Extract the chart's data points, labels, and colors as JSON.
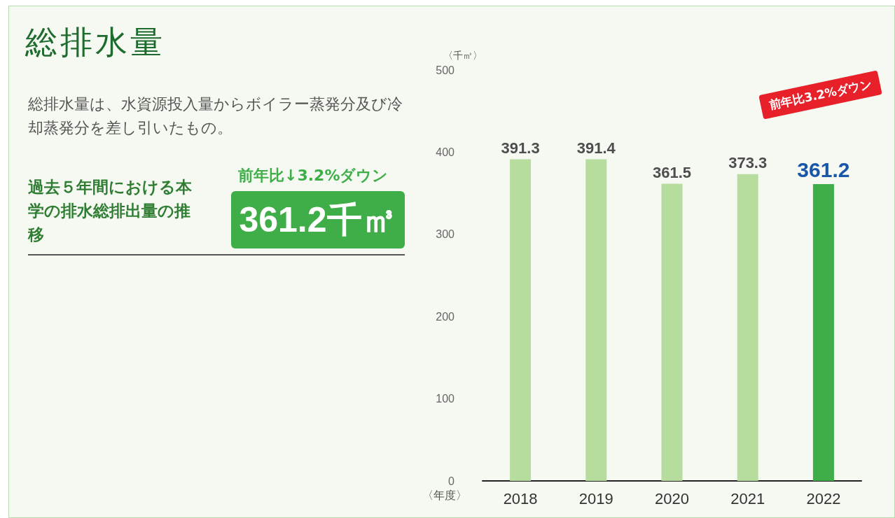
{
  "chart_data": {
    "type": "bar",
    "title": "総排水量",
    "subtitle": "総排水量は、水資源投入量からボイラー蒸発分及び冷却蒸発分を差し引いたもの。",
    "xlabel": "〈年度〉",
    "ylabel": "〈千㎥〉",
    "categories": [
      "2018",
      "2019",
      "2020",
      "2021",
      "2022"
    ],
    "values": [
      391.3,
      391.4,
      361.5,
      373.3,
      361.2
    ],
    "colors": [
      "#b6dc9e",
      "#b6dc9e",
      "#b6dc9e",
      "#b6dc9e",
      "#3fae49"
    ],
    "ylim": [
      0,
      500
    ],
    "yticks": [
      0,
      100,
      200,
      300,
      400,
      500
    ],
    "grid": false,
    "data_labels": true,
    "annotations": [
      "過去５年間における本学の排水総排出量の推移",
      "前年比↓3.2%ダウン",
      "361.2千㎥",
      "前年比3.2%ダウン"
    ]
  }
}
